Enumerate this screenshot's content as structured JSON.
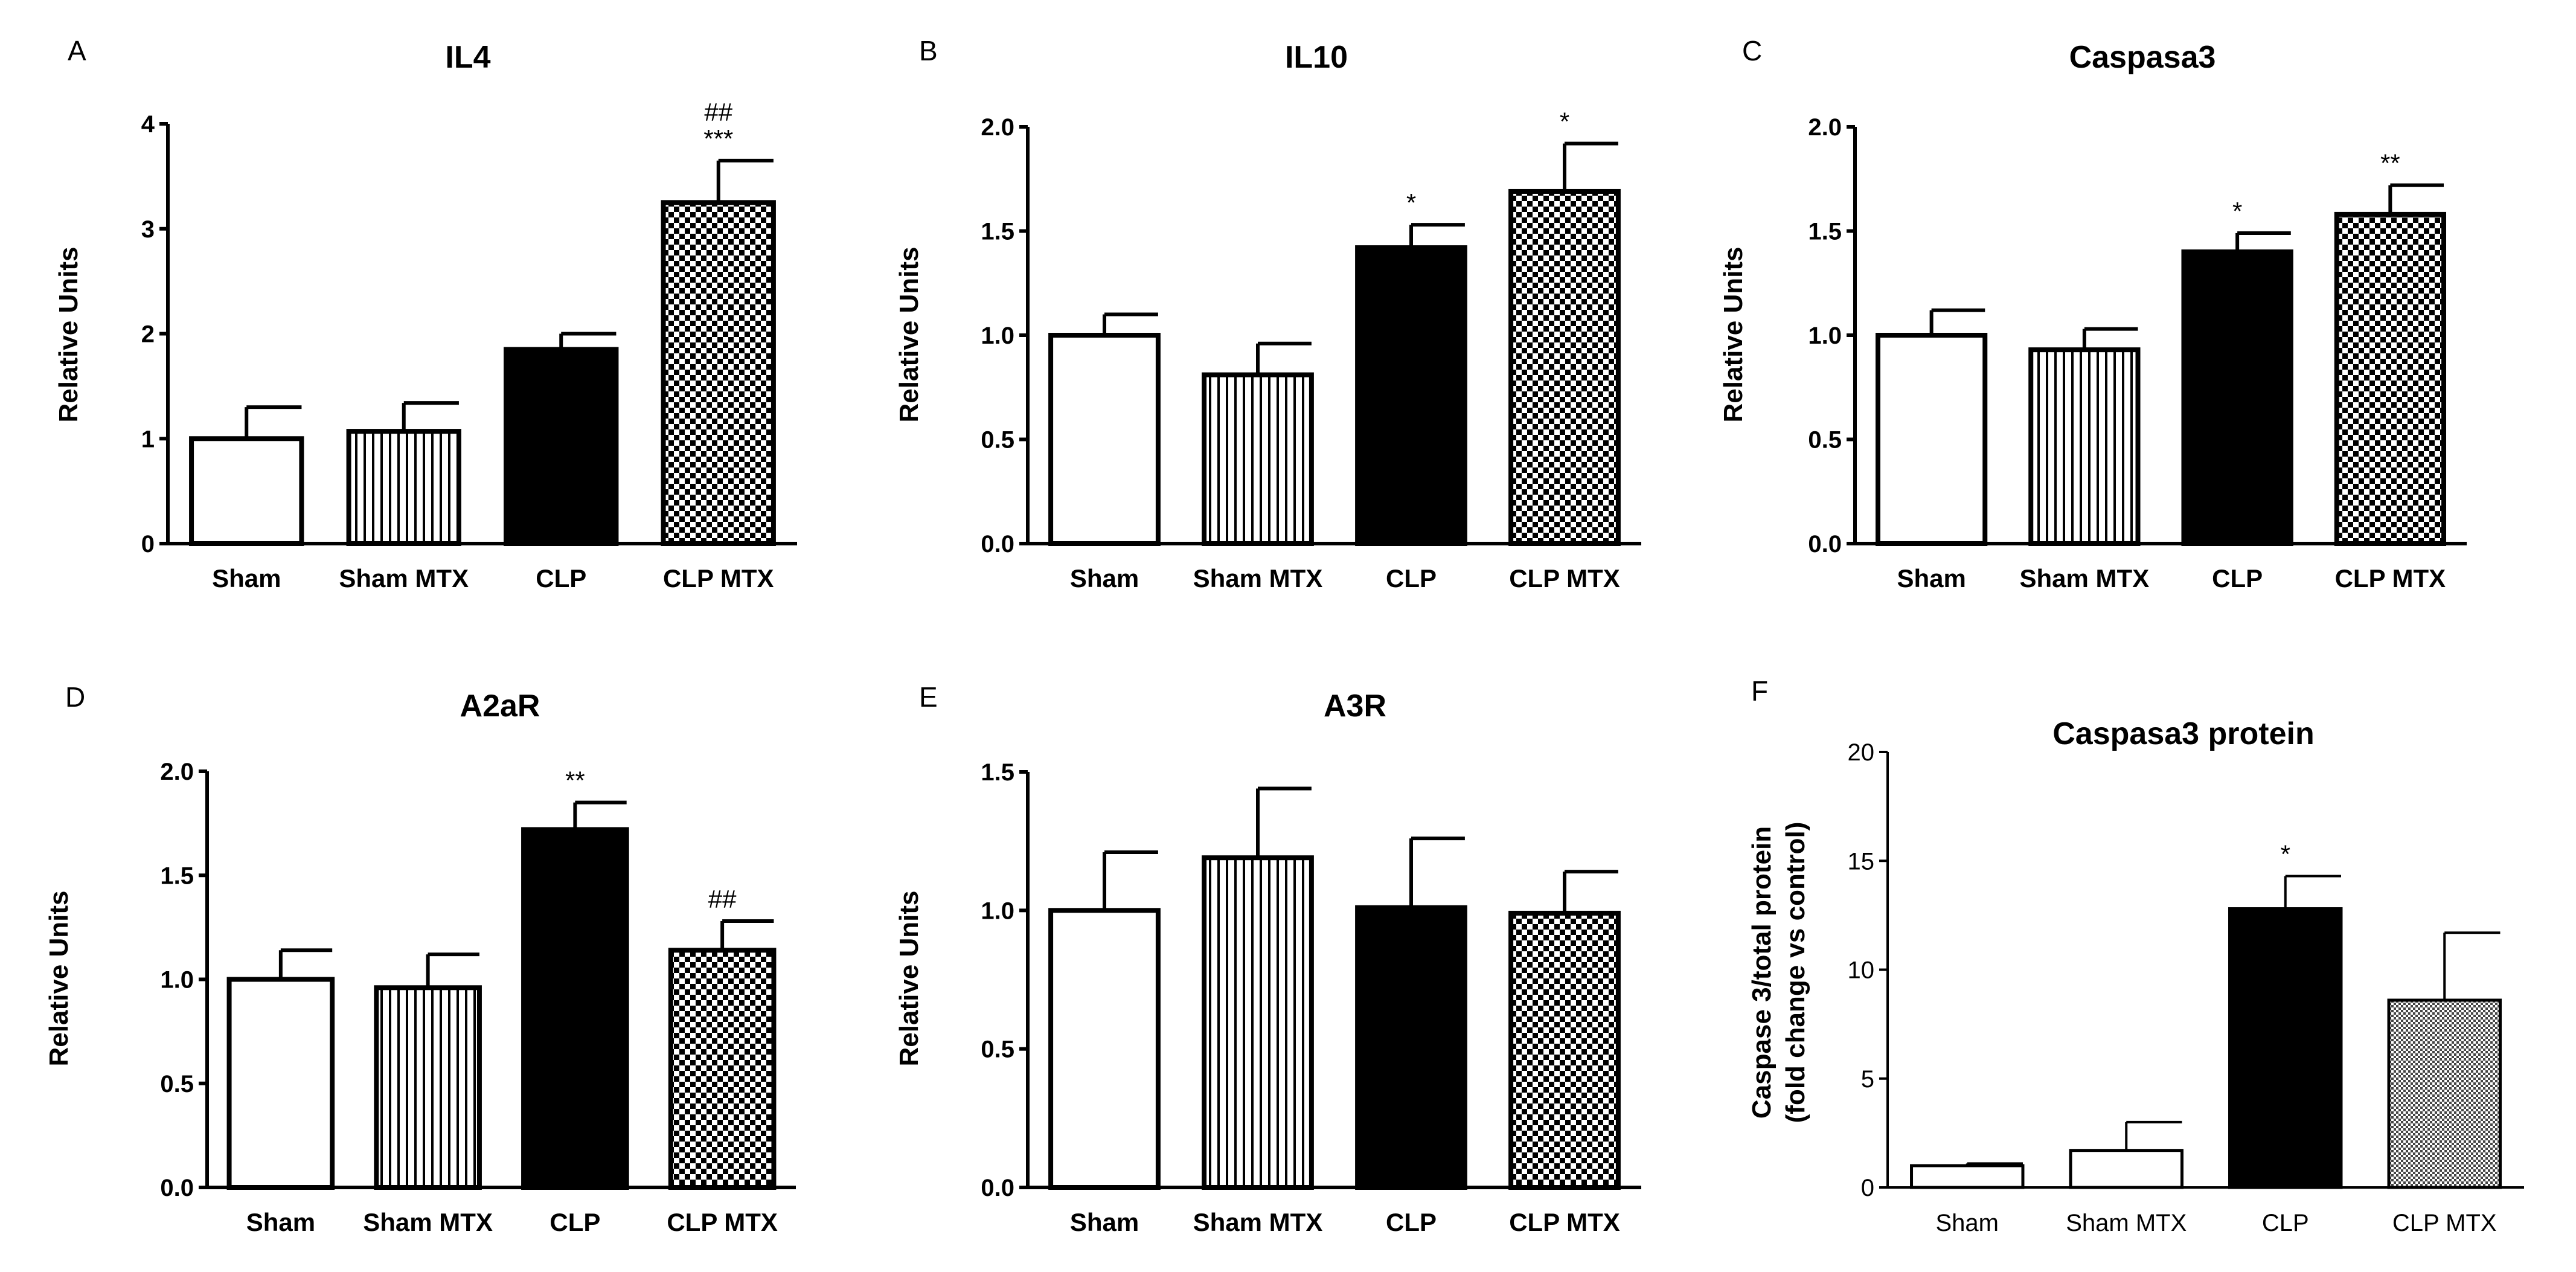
{
  "figure": {
    "panels": [
      {
        "letter": "A",
        "title": "IL4",
        "ylabel": "Relative Units",
        "style": "bold",
        "ticks": [
          "0",
          "1",
          "2",
          "3",
          "4"
        ]
      },
      {
        "letter": "B",
        "title": "IL10",
        "ylabel": "Relative Units",
        "style": "bold",
        "ticks": [
          "0.0",
          "0.5",
          "1.0",
          "1.5",
          "2.0"
        ]
      },
      {
        "letter": "C",
        "title": "Caspasa3",
        "ylabel": "Relative Units",
        "style": "bold",
        "ticks": [
          "0.0",
          "0.5",
          "1.0",
          "1.5",
          "2.0"
        ]
      },
      {
        "letter": "D",
        "title": "A2aR",
        "ylabel": "Relative Units",
        "style": "bold",
        "ticks": [
          "0.0",
          "0.5",
          "1.0",
          "1.5",
          "2.0"
        ]
      },
      {
        "letter": "E",
        "title": "A3R",
        "ylabel": "Relative Units",
        "style": "bold",
        "ticks": [
          "0.0",
          "0.5",
          "1.0",
          "1.5"
        ]
      },
      {
        "letter": "F",
        "title": "Caspasa3 protein",
        "ylabel_lines": [
          "Caspase 3/total protein",
          "(fold change vs control)"
        ],
        "style": "light",
        "ticks": [
          "0",
          "5",
          "10",
          "15",
          "20"
        ]
      }
    ]
  },
  "chart_data": [
    {
      "type": "bar",
      "title": "IL4",
      "xlabel": "",
      "ylabel": "Relative Units",
      "ylim": [
        0,
        4
      ],
      "categories": [
        "Sham",
        "Sham MTX",
        "CLP",
        "CLP MTX"
      ],
      "values": [
        1.0,
        1.07,
        1.85,
        3.25
      ],
      "errors": [
        0.3,
        0.27,
        0.15,
        0.4
      ],
      "annotations": [
        [],
        [],
        [],
        [
          "***",
          "##"
        ]
      ]
    },
    {
      "type": "bar",
      "title": "IL10",
      "xlabel": "",
      "ylabel": "Relative Units",
      "ylim": [
        0,
        2
      ],
      "categories": [
        "Sham",
        "Sham MTX",
        "CLP",
        "CLP MTX"
      ],
      "values": [
        1.0,
        0.81,
        1.42,
        1.69
      ],
      "errors": [
        0.1,
        0.15,
        0.11,
        0.23
      ],
      "annotations": [
        [],
        [],
        [
          "*"
        ],
        [
          "*"
        ]
      ]
    },
    {
      "type": "bar",
      "title": "Caspasa3",
      "xlabel": "",
      "ylabel": "Relative Units",
      "ylim": [
        0,
        2
      ],
      "categories": [
        "Sham",
        "Sham MTX",
        "CLP",
        "CLP MTX"
      ],
      "values": [
        1.0,
        0.93,
        1.4,
        1.58
      ],
      "errors": [
        0.12,
        0.1,
        0.09,
        0.14
      ],
      "annotations": [
        [],
        [],
        [
          "*"
        ],
        [
          "**"
        ]
      ]
    },
    {
      "type": "bar",
      "title": "A2aR",
      "xlabel": "",
      "ylabel": "Relative Units",
      "ylim": [
        0,
        2
      ],
      "categories": [
        "Sham",
        "Sham MTX",
        "CLP",
        "CLP MTX"
      ],
      "values": [
        1.0,
        0.96,
        1.72,
        1.14
      ],
      "errors": [
        0.14,
        0.16,
        0.13,
        0.14
      ],
      "annotations": [
        [],
        [],
        [
          "**"
        ],
        [
          "##"
        ]
      ]
    },
    {
      "type": "bar",
      "title": "A3R",
      "xlabel": "",
      "ylabel": "Relative Units",
      "ylim": [
        0,
        1.5
      ],
      "categories": [
        "Sham",
        "Sham MTX",
        "CLP",
        "CLP MTX"
      ],
      "values": [
        1.0,
        1.19,
        1.01,
        0.99
      ],
      "errors": [
        0.21,
        0.25,
        0.25,
        0.15
      ],
      "annotations": [
        [],
        [],
        [],
        []
      ]
    },
    {
      "type": "bar",
      "title": "Caspasa3 protein",
      "xlabel": "",
      "ylabel": "Caspase 3/total protein (fold change vs control)",
      "ylim": [
        0,
        20
      ],
      "categories": [
        "Sham",
        "Sham MTX",
        "CLP",
        "CLP MTX"
      ],
      "values": [
        1.0,
        1.7,
        12.8,
        8.6
      ],
      "errors": [
        0.1,
        1.3,
        1.5,
        3.1
      ],
      "annotations": [
        [],
        [],
        [
          "*"
        ],
        []
      ]
    }
  ]
}
